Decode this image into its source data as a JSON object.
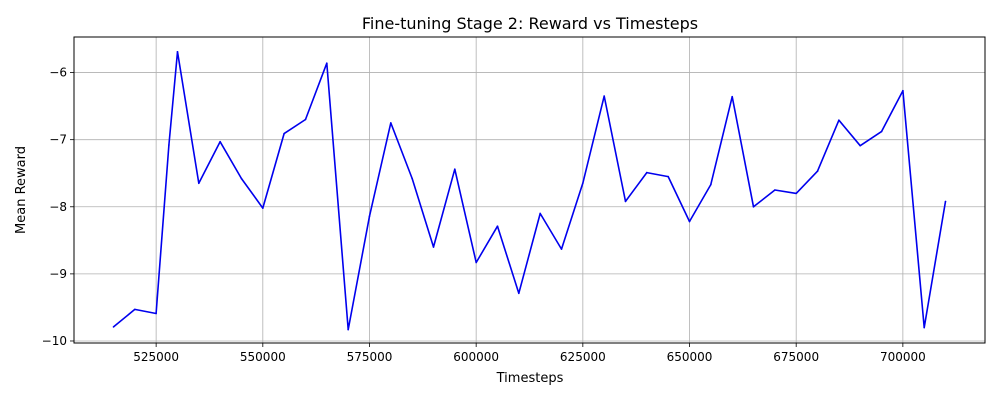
{
  "chart_data": {
    "type": "line",
    "title": "Fine-tuning Stage 2: Reward vs Timesteps",
    "xlabel": "Timesteps",
    "ylabel": "Mean Reward",
    "xlim": [
      505750,
      719250
    ],
    "ylim": [
      -10.03,
      -5.47
    ],
    "xticks": [
      525000,
      550000,
      575000,
      600000,
      625000,
      650000,
      675000,
      700000
    ],
    "xtick_labels": [
      "525000",
      "550000",
      "575000",
      "600000",
      "625000",
      "650000",
      "675000",
      "700000"
    ],
    "yticks": [
      -10,
      -9,
      -8,
      -7,
      -6
    ],
    "ytick_labels": [
      "−10",
      "−9",
      "−8",
      "−7",
      "−6"
    ],
    "grid": true,
    "series": [
      {
        "color": "#0000ee",
        "x": [
          515000,
          520000,
          525000,
          528000,
          530000,
          535000,
          540000,
          545000,
          550000,
          555000,
          560000,
          565000,
          570000,
          575000,
          580000,
          585000,
          590000,
          595000,
          600000,
          605000,
          610000,
          615000,
          620000,
          625000,
          630000,
          635000,
          640000,
          645000,
          650000,
          655000,
          660000,
          665000,
          670000,
          675000,
          680000,
          685000,
          690000,
          695000,
          700000,
          705000,
          710000
        ],
        "y": [
          -9.79,
          -9.53,
          -9.59,
          -7.08,
          -5.69,
          -7.65,
          -7.03,
          -7.58,
          -8.02,
          -6.91,
          -6.7,
          -5.86,
          -9.83,
          -8.14,
          -6.75,
          -7.58,
          -8.6,
          -7.44,
          -8.83,
          -8.29,
          -9.29,
          -8.1,
          -8.63,
          -7.65,
          -6.35,
          -7.92,
          -7.49,
          -7.55,
          -8.22,
          -7.67,
          -6.36,
          -8.0,
          -7.75,
          -7.8,
          -7.47,
          -6.71,
          -7.09,
          -6.88,
          -6.27,
          -9.8,
          -7.92
        ]
      }
    ]
  }
}
